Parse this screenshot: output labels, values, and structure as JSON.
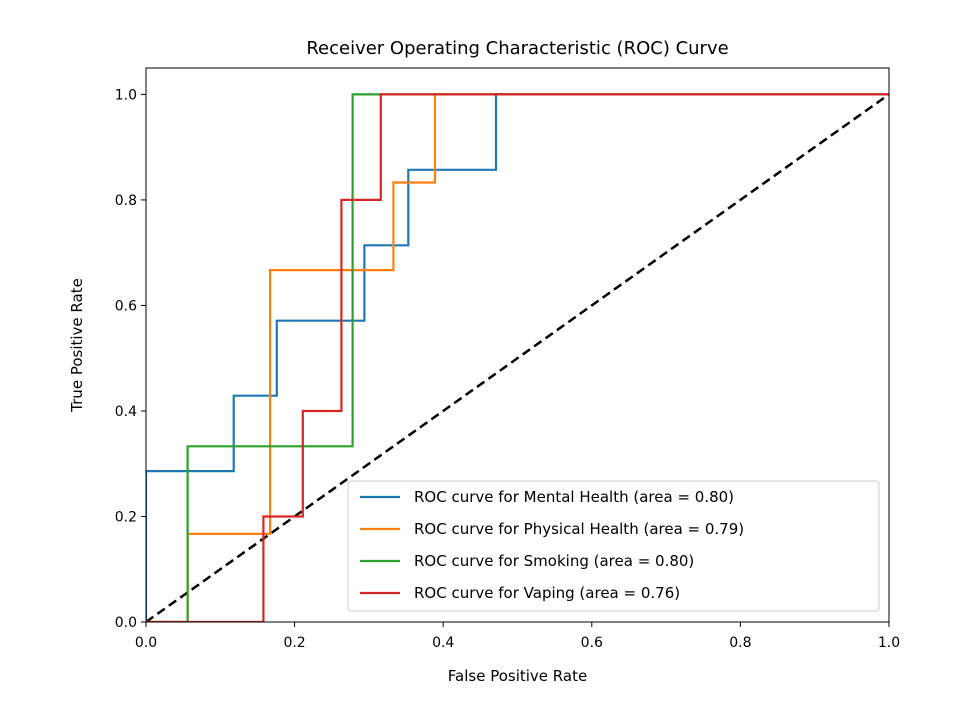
{
  "chart_data": {
    "type": "line",
    "title": "Receiver Operating Characteristic (ROC) Curve",
    "xlabel": "False Positive Rate",
    "ylabel": "True Positive Rate",
    "xlim": [
      0.0,
      1.0
    ],
    "ylim": [
      0.0,
      1.05
    ],
    "xticks": [
      "0.0",
      "0.2",
      "0.4",
      "0.6",
      "0.8",
      "1.0"
    ],
    "yticks": [
      "0.0",
      "0.2",
      "0.4",
      "0.6",
      "0.8",
      "1.0"
    ],
    "legend_position": "lower-right",
    "grid": false,
    "series": [
      {
        "name": "ROC curve for Mental Health (area = 0.80)",
        "color": "#1f77b4",
        "x": [
          0.0,
          0.0,
          0.118,
          0.118,
          0.176,
          0.176,
          0.294,
          0.294,
          0.353,
          0.353,
          0.471,
          0.471,
          1.0
        ],
        "y": [
          0.0,
          0.286,
          0.286,
          0.429,
          0.429,
          0.571,
          0.571,
          0.714,
          0.714,
          0.857,
          0.857,
          1.0,
          1.0
        ]
      },
      {
        "name": "ROC curve for Physical Health (area = 0.79)",
        "color": "#ff7f0e",
        "x": [
          0.0,
          0.056,
          0.056,
          0.167,
          0.167,
          0.333,
          0.333,
          0.389,
          0.389,
          1.0
        ],
        "y": [
          0.0,
          0.0,
          0.167,
          0.167,
          0.667,
          0.667,
          0.833,
          0.833,
          1.0,
          1.0
        ]
      },
      {
        "name": "ROC curve for Smoking (area = 0.80)",
        "color": "#2ca02c",
        "x": [
          0.0,
          0.056,
          0.056,
          0.278,
          0.278,
          1.0
        ],
        "y": [
          0.0,
          0.0,
          0.333,
          0.333,
          1.0,
          1.0
        ]
      },
      {
        "name": "ROC curve for Vaping (area = 0.76)",
        "color": "#d62728",
        "x": [
          0.0,
          0.158,
          0.158,
          0.211,
          0.211,
          0.263,
          0.263,
          0.316,
          0.316,
          1.0
        ],
        "y": [
          0.0,
          0.0,
          0.2,
          0.2,
          0.4,
          0.4,
          0.8,
          0.8,
          1.0,
          1.0
        ]
      }
    ],
    "diagonal": {
      "x": [
        0.0,
        1.0
      ],
      "y": [
        0.0,
        1.0
      ],
      "color": "#000000",
      "style": "dashed"
    }
  }
}
